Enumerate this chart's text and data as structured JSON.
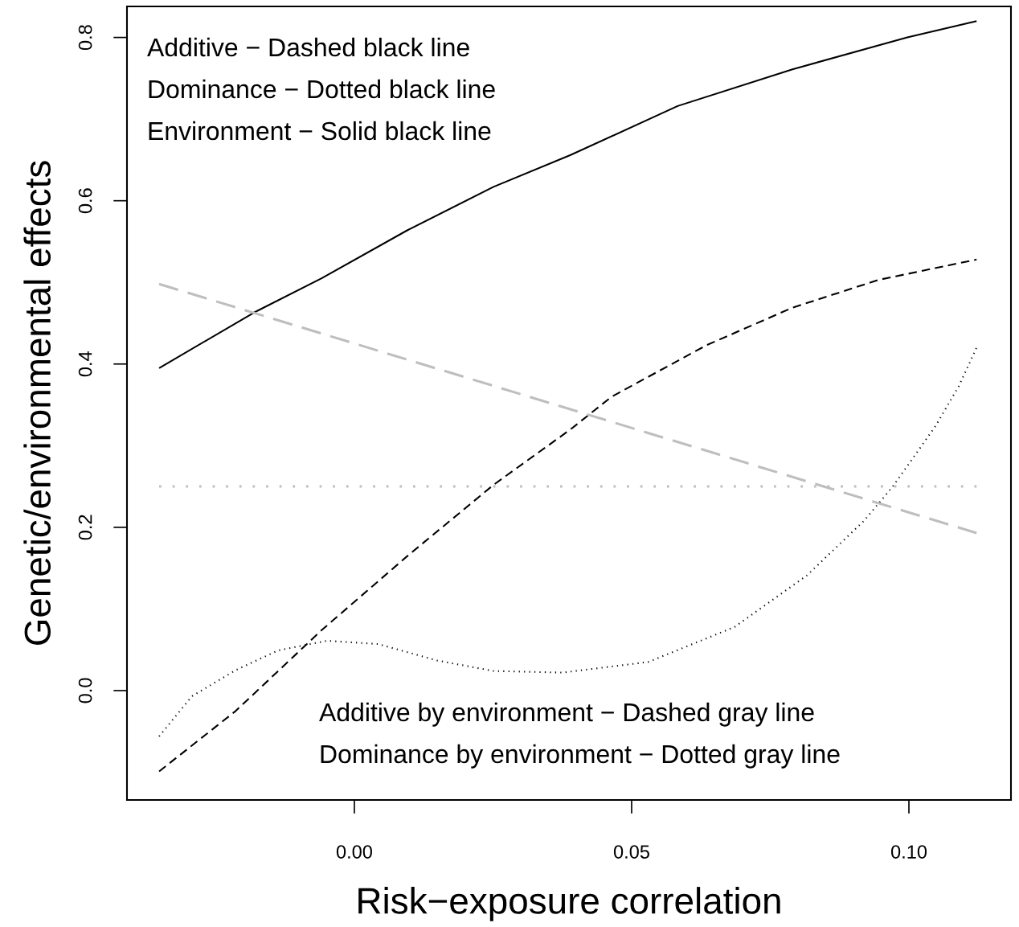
{
  "chart_data": {
    "type": "line",
    "xlabel": "Risk−exposure correlation",
    "ylabel": "Genetic/environmental effects",
    "xlim": [
      -0.041,
      0.1184
    ],
    "ylim": [
      -0.134,
      0.838
    ],
    "xticks": [
      {
        "value": 0,
        "label": "0.00"
      },
      {
        "value": 0.05,
        "label": "0.05"
      },
      {
        "value": 0.1,
        "label": "0.10"
      }
    ],
    "yticks": [
      {
        "value": 0,
        "label": "0.0"
      },
      {
        "value": 0.2,
        "label": "0.2"
      },
      {
        "value": 0.4,
        "label": "0.4"
      },
      {
        "value": 0.6,
        "label": "0.6"
      },
      {
        "value": 0.8,
        "label": "0.8"
      }
    ],
    "grid": false,
    "marker": "none",
    "annotations": [
      "Additive − Dashed black line",
      "Dominance − Dotted black line",
      "Environment − Solid black line",
      "Additive by environment − Dashed gray line",
      "Dominance by environment − Dotted gray line"
    ],
    "series": [
      {
        "color": "#000000",
        "line_style": "solid",
        "x": [
          -0.0352,
          -0.0181,
          -0.0059,
          0.0096,
          0.0251,
          0.039,
          0.0583,
          0.079,
          0.0997,
          0.1122
        ],
        "values": [
          0.395,
          0.463,
          0.505,
          0.564,
          0.617,
          0.656,
          0.716,
          0.761,
          0.8,
          0.82
        ]
      },
      {
        "color": "#000000",
        "line_style": "dashed",
        "x": [
          -0.0352,
          -0.0214,
          -0.0059,
          0.0096,
          0.0251,
          0.039,
          0.0464,
          0.0635,
          0.079,
          0.0945,
          0.1122
        ],
        "values": [
          -0.099,
          -0.025,
          0.074,
          0.165,
          0.252,
          0.32,
          0.36,
          0.423,
          0.469,
          0.503,
          0.528
        ]
      },
      {
        "color": "#000000",
        "line_style": "dotted",
        "x": [
          -0.0352,
          -0.0293,
          -0.0214,
          -0.0138,
          -0.0049,
          0.0043,
          0.0148,
          0.0251,
          0.0375,
          0.053,
          0.0686,
          0.0816,
          0.0919,
          0.0971,
          0.1048,
          0.109,
          0.1122
        ],
        "values": [
          -0.056,
          -0.007,
          0.025,
          0.049,
          0.061,
          0.057,
          0.037,
          0.024,
          0.022,
          0.035,
          0.078,
          0.141,
          0.208,
          0.25,
          0.324,
          0.373,
          0.42
        ]
      },
      {
        "color": "#bebebe",
        "line_style": "dashed",
        "x": [
          -0.0352,
          0.1122
        ],
        "values": [
          0.498,
          0.193
        ]
      },
      {
        "color": "#bebebe",
        "line_style": "dotted",
        "x": [
          -0.0352,
          0.1122
        ],
        "values": [
          0.25,
          0.25
        ]
      }
    ]
  }
}
